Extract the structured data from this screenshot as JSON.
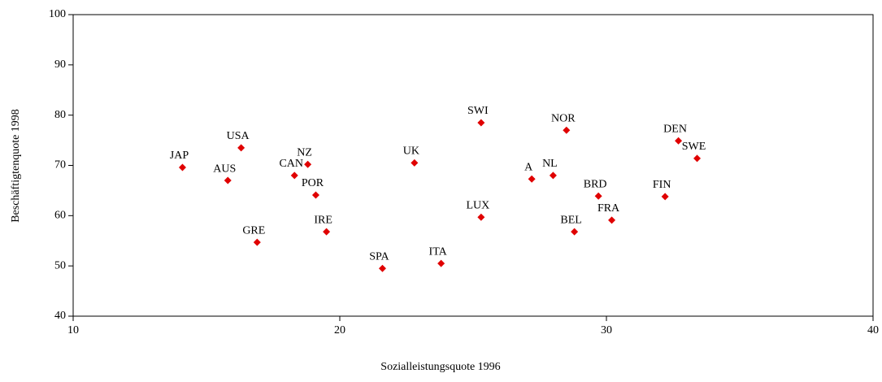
{
  "chart_data": {
    "type": "scatter",
    "xlabel": "Sozialleistungsquote 1996",
    "ylabel": "Beschäftigtenquote 1998",
    "labels": [
      "JAP",
      "USA",
      "AUS",
      "GRE",
      "CAN",
      "NZ",
      "POR",
      "IRE",
      "SPA",
      "UK",
      "ITA",
      "SWI",
      "LUX",
      "A",
      "NL",
      "NOR",
      "BEL",
      "BRD",
      "FRA",
      "FIN",
      "DEN",
      "SWE"
    ],
    "x": [
      14.1,
      16.3,
      15.8,
      16.9,
      18.3,
      18.8,
      19.1,
      19.5,
      21.6,
      22.8,
      23.8,
      25.3,
      25.3,
      27.2,
      28.0,
      28.5,
      28.8,
      29.7,
      30.2,
      32.2,
      32.7,
      33.4
    ],
    "values": [
      69.6,
      73.5,
      67.0,
      54.7,
      68.0,
      70.2,
      64.1,
      56.8,
      49.5,
      70.5,
      50.5,
      78.5,
      59.7,
      67.3,
      68.0,
      77.0,
      56.8,
      63.9,
      59.1,
      63.8,
      74.9,
      71.4
    ],
    "color": "#e00000",
    "xlim": [
      10,
      40
    ],
    "xticks": [
      10,
      20,
      30,
      40
    ],
    "ylim": [
      40,
      100
    ],
    "yticks": [
      40,
      50,
      60,
      70,
      80,
      90,
      100
    ],
    "grid": false
  }
}
